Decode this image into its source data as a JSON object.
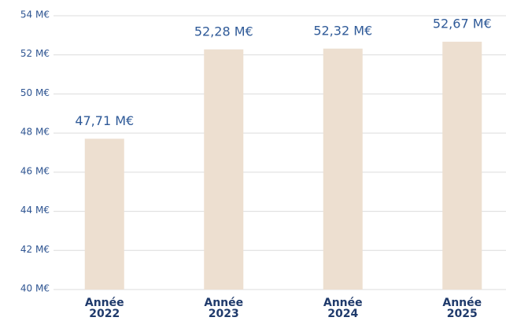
{
  "chart_data": {
    "type": "bar",
    "categories": [
      "Année 2022",
      "Année 2023",
      "Année 2024",
      "Année 2025"
    ],
    "values": [
      47.71,
      52.28,
      52.32,
      52.67
    ],
    "value_labels": [
      "47,71 M€",
      "52,28 M€",
      "52,32 M€",
      "52,67 M€"
    ],
    "color": "#eddfd0",
    "ylim": [
      40,
      54
    ],
    "yticks": [
      {
        "value": 40,
        "label": "40 M€"
      },
      {
        "value": 42,
        "label": "42 M€"
      },
      {
        "value": 44,
        "label": "44 M€"
      },
      {
        "value": 46,
        "label": "46 M€"
      },
      {
        "value": 48,
        "label": "48 M€"
      },
      {
        "value": 50,
        "label": "50 M€"
      },
      {
        "value": 52,
        "label": "52 M€"
      },
      {
        "value": 54,
        "label": "54 M€"
      }
    ],
    "grid": true
  }
}
